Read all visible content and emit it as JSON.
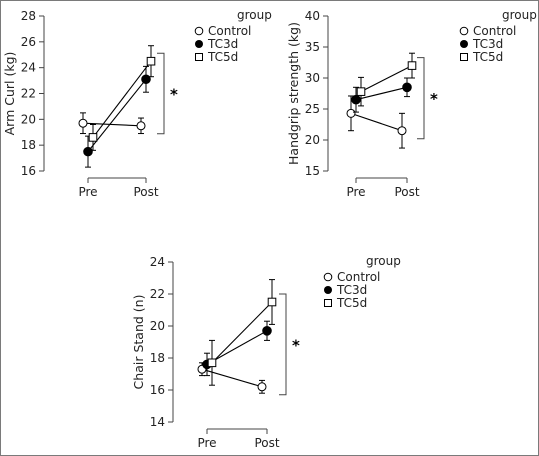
{
  "chart_data": [
    {
      "type": "line",
      "categories": [
        "Pre",
        "Post"
      ],
      "ylabel": "Arm Curl (kg)",
      "ylim": [
        16,
        28
      ],
      "yticks": [
        16,
        18,
        20,
        22,
        24,
        26,
        28
      ],
      "legend_title": "group",
      "legend_position": "right",
      "significance": "*",
      "series": [
        {
          "name": "Control",
          "marker": "open-circle",
          "values": [
            19.7,
            19.5
          ],
          "errors": [
            0.8,
            0.6
          ]
        },
        {
          "name": "TC3d",
          "marker": "filled-circle",
          "values": [
            17.5,
            23.1
          ],
          "errors": [
            1.2,
            1.0
          ]
        },
        {
          "name": "TC5d",
          "marker": "open-square",
          "values": [
            18.6,
            24.5
          ],
          "errors": [
            1.0,
            1.2
          ]
        }
      ]
    },
    {
      "type": "line",
      "categories": [
        "Pre",
        "Post"
      ],
      "ylabel": "Handgrip strength (kg)",
      "ylim": [
        15,
        40
      ],
      "yticks": [
        15,
        20,
        25,
        30,
        35,
        40
      ],
      "legend_title": "group",
      "legend_position": "right",
      "significance": "*",
      "series": [
        {
          "name": "Control",
          "marker": "open-circle",
          "values": [
            24.3,
            21.5
          ],
          "errors": [
            2.8,
            2.8
          ]
        },
        {
          "name": "TC3d",
          "marker": "filled-circle",
          "values": [
            26.5,
            28.5
          ],
          "errors": [
            2.0,
            1.5
          ]
        },
        {
          "name": "TC5d",
          "marker": "open-square",
          "values": [
            27.8,
            32.0
          ],
          "errors": [
            2.3,
            2.0
          ]
        }
      ]
    },
    {
      "type": "line",
      "categories": [
        "Pre",
        "Post"
      ],
      "ylabel": "Chair Stand (n)",
      "ylim": [
        14,
        24
      ],
      "yticks": [
        14,
        16,
        18,
        20,
        22,
        24
      ],
      "legend_title": "group",
      "legend_position": "right",
      "significance": "*",
      "series": [
        {
          "name": "Control",
          "marker": "open-circle",
          "values": [
            17.3,
            16.2
          ],
          "errors": [
            0.4,
            0.4
          ]
        },
        {
          "name": "TC3d",
          "marker": "filled-circle",
          "values": [
            17.6,
            19.7
          ],
          "errors": [
            0.7,
            0.6
          ]
        },
        {
          "name": "TC5d",
          "marker": "open-square",
          "values": [
            17.7,
            21.5
          ],
          "errors": [
            1.4,
            1.4
          ]
        }
      ]
    }
  ]
}
